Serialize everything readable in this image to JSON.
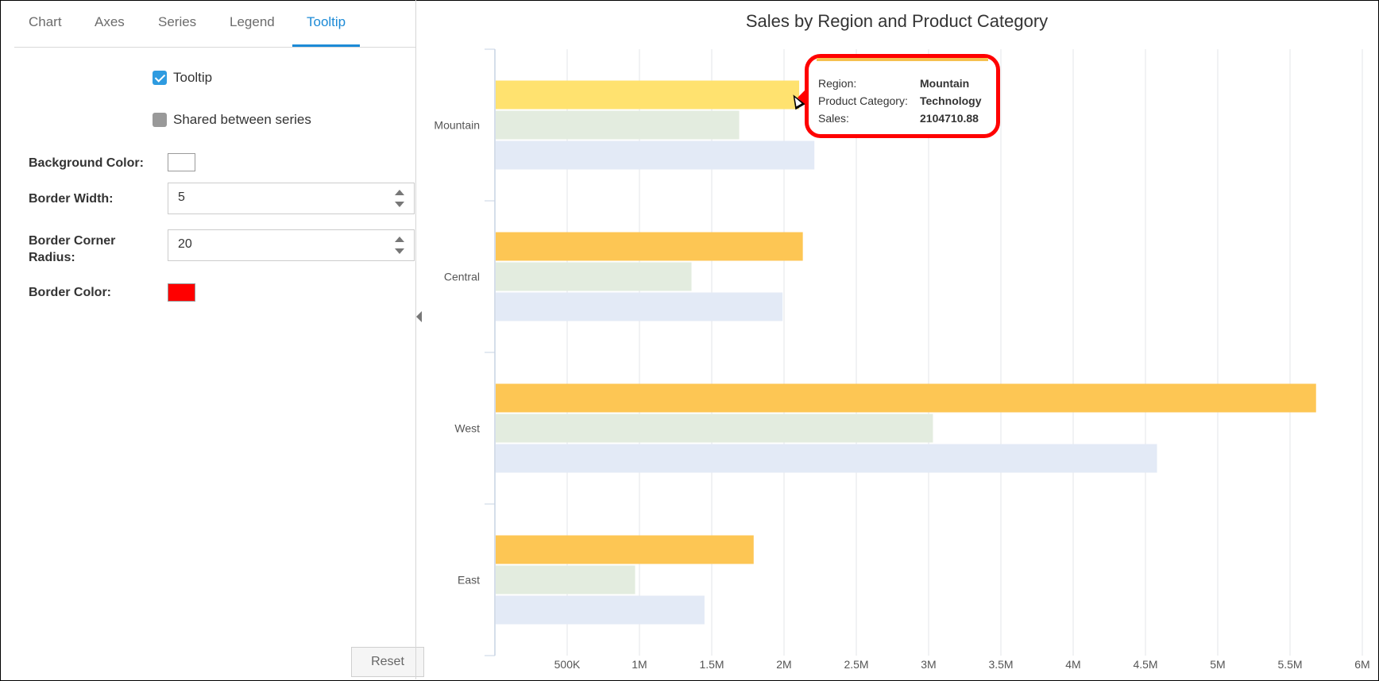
{
  "tabs": [
    {
      "label": "Chart"
    },
    {
      "label": "Axes"
    },
    {
      "label": "Series"
    },
    {
      "label": "Legend"
    },
    {
      "label": "Tooltip",
      "active": true
    }
  ],
  "settings": {
    "tooltip_enabled": {
      "label": "Tooltip",
      "checked": true
    },
    "shared_between_series": {
      "label": "Shared between series",
      "checked": false
    },
    "background_color": {
      "label": "Background Color:",
      "value": "#ffffff"
    },
    "border_width": {
      "label": "Border Width:",
      "value": "5"
    },
    "border_corner_radius": {
      "label_line1": "Border Corner",
      "label_line2": "Radius:",
      "value": "20"
    },
    "border_color": {
      "label": "Border Color:",
      "value": "#ff0000"
    },
    "reset_label": "Reset"
  },
  "chart_data": {
    "type": "bar",
    "orientation": "horizontal",
    "title": "Sales by Region and Product Category",
    "categories": [
      "Mountain",
      "Central",
      "West",
      "East"
    ],
    "series": [
      {
        "color": "#fdc654",
        "values": [
          2104710.88,
          2130000,
          5680000,
          1790000
        ]
      },
      {
        "color": "#e3ecdf",
        "values": [
          1690000,
          1360000,
          3030000,
          970000
        ]
      },
      {
        "color": "#e3eaf6",
        "values": [
          2210000,
          1990000,
          4580000,
          1450000
        ]
      }
    ],
    "xlim": [
      0,
      6000000
    ],
    "xticks": [
      {
        "value": 500000,
        "label": "500K"
      },
      {
        "value": 1000000,
        "label": "1M"
      },
      {
        "value": 1500000,
        "label": "1.5M"
      },
      {
        "value": 2000000,
        "label": "2M"
      },
      {
        "value": 2500000,
        "label": "2.5M"
      },
      {
        "value": 3000000,
        "label": "3M"
      },
      {
        "value": 3500000,
        "label": "3.5M"
      },
      {
        "value": 4000000,
        "label": "4M"
      },
      {
        "value": 4500000,
        "label": "4.5M"
      },
      {
        "value": 5000000,
        "label": "5M"
      },
      {
        "value": 5500000,
        "label": "5.5M"
      },
      {
        "value": 6000000,
        "label": "6M"
      }
    ],
    "grid": true,
    "highlighted_bar_color": "#ffe26f"
  },
  "tooltip": {
    "rows": [
      {
        "key": "Region:",
        "value": "Mountain"
      },
      {
        "key": "Product Category:",
        "value": "Technology"
      },
      {
        "key": "Sales:",
        "value": "2104710.88"
      }
    ]
  }
}
